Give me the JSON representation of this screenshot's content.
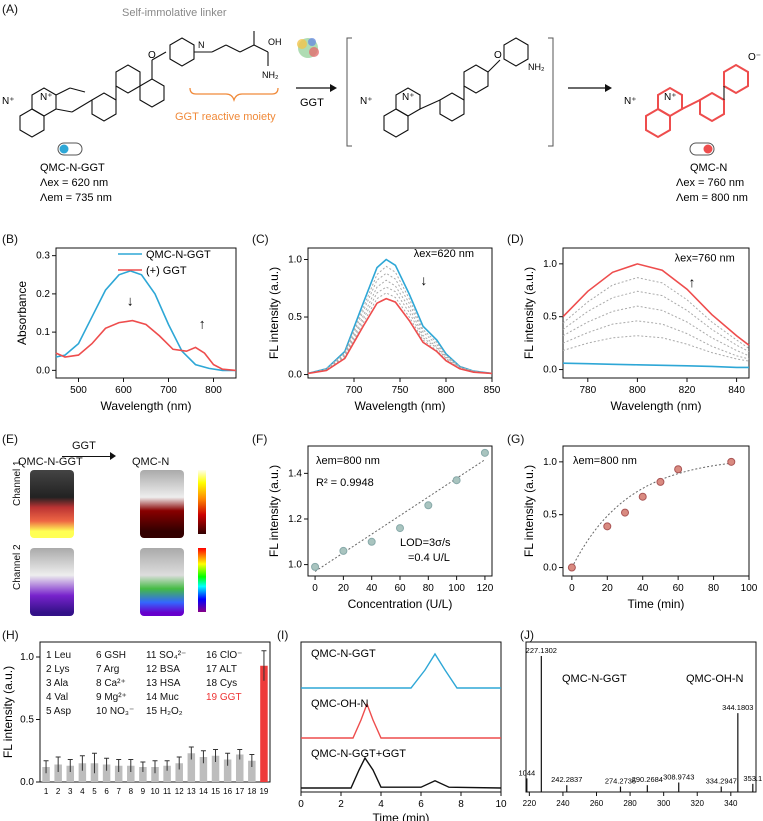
{
  "panels": {
    "A": "(A)",
    "B": "(B)",
    "C": "(C)",
    "D": "(D)",
    "E": "(E)",
    "F": "(F)",
    "G": "(G)",
    "H": "(H)",
    "I": "(I)",
    "J": "(J)"
  },
  "scheme": {
    "linker_label": "Self-immolative linker",
    "reactive_label": "GGT reactive moiety",
    "enzyme": "GGT",
    "probe": {
      "name": "QMC-N-GGT",
      "ex": "Λex = 620 nm",
      "em": "Λem = 735 nm"
    },
    "product": {
      "name": "QMC-N",
      "ex": "Λex = 760 nm",
      "em": "Λem = 800 nm"
    },
    "colors": {
      "probe": "#2ea7d6",
      "product": "#ee4d4d",
      "orange": "#f08a3a"
    }
  },
  "chart_data": [
    {
      "id": "B",
      "type": "line",
      "xlabel": "Wavelength (nm)",
      "ylabel": "Absorbance",
      "xlim": [
        450,
        850
      ],
      "ylim": [
        -0.02,
        0.32
      ],
      "xticks": [
        500,
        600,
        700,
        800
      ],
      "yticks": [
        0.0,
        0.1,
        0.2,
        0.3
      ],
      "legend": [
        "QMC-N-GGT",
        "(+) GGT"
      ],
      "series": [
        {
          "name": "QMC-N-GGT",
          "color": "#2ea7d6",
          "x": [
            450,
            470,
            500,
            530,
            560,
            590,
            615,
            640,
            670,
            700,
            730,
            760,
            790,
            820,
            850
          ],
          "y": [
            0.035,
            0.04,
            0.07,
            0.14,
            0.21,
            0.25,
            0.26,
            0.25,
            0.2,
            0.12,
            0.05,
            0.015,
            0.005,
            0.0,
            0.0
          ]
        },
        {
          "name": "(+) GGT",
          "color": "#ee4d4d",
          "x": [
            450,
            470,
            500,
            530,
            560,
            590,
            620,
            650,
            680,
            710,
            740,
            760,
            780,
            800,
            820,
            850
          ],
          "y": [
            0.045,
            0.035,
            0.04,
            0.07,
            0.11,
            0.125,
            0.13,
            0.12,
            0.09,
            0.055,
            0.05,
            0.06,
            0.045,
            0.015,
            0.003,
            0.0
          ]
        }
      ]
    },
    {
      "id": "C",
      "type": "line",
      "annotation": "λex=620 nm",
      "xlabel": "Wavelength (nm)",
      "ylabel": "FL intensity (a.u.)",
      "xlim": [
        650,
        850
      ],
      "ylim": [
        -0.03,
        1.1
      ],
      "xticks": [
        700,
        750,
        800,
        850
      ],
      "yticks": [
        0.0,
        0.5,
        1.0
      ],
      "x": [
        650,
        670,
        690,
        710,
        725,
        735,
        745,
        760,
        775,
        790,
        800,
        815,
        830,
        850
      ],
      "series": [
        {
          "name": "start",
          "color": "#2ea7d6",
          "y": [
            0.01,
            0.05,
            0.2,
            0.62,
            0.93,
            1.0,
            0.95,
            0.7,
            0.42,
            0.3,
            0.18,
            0.07,
            0.03,
            0.01
          ]
        },
        {
          "name": "t1",
          "color": "#aaaaaa",
          "y": [
            0.01,
            0.05,
            0.19,
            0.58,
            0.87,
            0.94,
            0.89,
            0.66,
            0.39,
            0.28,
            0.17,
            0.07,
            0.03,
            0.01
          ]
        },
        {
          "name": "t2",
          "color": "#aaaaaa",
          "y": [
            0.01,
            0.045,
            0.18,
            0.55,
            0.82,
            0.88,
            0.83,
            0.62,
            0.37,
            0.26,
            0.16,
            0.06,
            0.03,
            0.01
          ]
        },
        {
          "name": "t3",
          "color": "#aaaaaa",
          "y": [
            0.01,
            0.04,
            0.17,
            0.51,
            0.76,
            0.82,
            0.77,
            0.58,
            0.34,
            0.24,
            0.15,
            0.06,
            0.02,
            0.01
          ]
        },
        {
          "name": "t4",
          "color": "#aaaaaa",
          "y": [
            0.01,
            0.04,
            0.16,
            0.48,
            0.71,
            0.76,
            0.72,
            0.54,
            0.32,
            0.23,
            0.14,
            0.05,
            0.02,
            0.01
          ]
        },
        {
          "name": "t5",
          "color": "#aaaaaa",
          "y": [
            0.01,
            0.04,
            0.15,
            0.45,
            0.66,
            0.71,
            0.67,
            0.5,
            0.3,
            0.21,
            0.13,
            0.05,
            0.02,
            0.01
          ]
        },
        {
          "name": "end",
          "color": "#ee4d4d",
          "y": [
            0.01,
            0.035,
            0.14,
            0.42,
            0.62,
            0.66,
            0.63,
            0.47,
            0.28,
            0.2,
            0.12,
            0.05,
            0.02,
            0.01
          ]
        }
      ]
    },
    {
      "id": "D",
      "type": "line",
      "annotation": "λex=760 nm",
      "xlabel": "Wavelength (nm)",
      "ylabel": "FL intensity (a.u.)",
      "xlim": [
        770,
        845
      ],
      "ylim": [
        -0.08,
        1.15
      ],
      "xticks": [
        780,
        800,
        820,
        840
      ],
      "yticks": [
        0.0,
        0.5,
        1.0
      ],
      "x": [
        770,
        780,
        790,
        800,
        810,
        820,
        830,
        840,
        845
      ],
      "series": [
        {
          "name": "start",
          "color": "#2ea7d6",
          "y": [
            0.06,
            0.055,
            0.05,
            0.045,
            0.04,
            0.035,
            0.03,
            0.02,
            0.02
          ]
        },
        {
          "name": "t1",
          "color": "#aaaaaa",
          "y": [
            0.18,
            0.25,
            0.3,
            0.32,
            0.3,
            0.24,
            0.16,
            0.1,
            0.08
          ]
        },
        {
          "name": "t2",
          "color": "#aaaaaa",
          "y": [
            0.25,
            0.35,
            0.43,
            0.46,
            0.43,
            0.34,
            0.22,
            0.13,
            0.1
          ]
        },
        {
          "name": "t3",
          "color": "#aaaaaa",
          "y": [
            0.32,
            0.45,
            0.55,
            0.6,
            0.56,
            0.45,
            0.3,
            0.18,
            0.13
          ]
        },
        {
          "name": "t4",
          "color": "#aaaaaa",
          "y": [
            0.38,
            0.55,
            0.68,
            0.74,
            0.7,
            0.56,
            0.38,
            0.23,
            0.17
          ]
        },
        {
          "name": "t5",
          "color": "#aaaaaa",
          "y": [
            0.44,
            0.64,
            0.8,
            0.87,
            0.82,
            0.66,
            0.45,
            0.28,
            0.2
          ]
        },
        {
          "name": "end",
          "color": "#ee4d4d",
          "y": [
            0.5,
            0.74,
            0.92,
            1.0,
            0.94,
            0.76,
            0.52,
            0.32,
            0.23
          ]
        }
      ]
    },
    {
      "id": "F",
      "type": "scatter",
      "annotations": [
        "λem=800 nm",
        "R² = 0.9948",
        "LOD=3σ/s",
        "=0.4 U/L"
      ],
      "xlabel": "Concentration (U/L)",
      "ylabel": "FL intensity (a.u.)",
      "xlim": [
        -5,
        125
      ],
      "ylim": [
        0.95,
        1.52
      ],
      "xticks": [
        0,
        20,
        40,
        60,
        80,
        100,
        120
      ],
      "yticks": [
        1.0,
        1.2,
        1.4
      ],
      "x": [
        0,
        20,
        40,
        60,
        80,
        100,
        120
      ],
      "y": [
        0.99,
        1.06,
        1.1,
        1.16,
        1.26,
        1.37,
        1.49
      ],
      "fit": [
        [
          0,
          0.97
        ],
        [
          120,
          1.46
        ]
      ]
    },
    {
      "id": "G",
      "type": "scatter",
      "annotation": "λem=800 nm",
      "xlabel": "Time (min)",
      "ylabel": "FL intensity (a.u.)",
      "xlim": [
        -5,
        100
      ],
      "ylim": [
        -0.08,
        1.15
      ],
      "xticks": [
        0,
        20,
        40,
        60,
        80,
        100
      ],
      "yticks": [
        0.0,
        0.5,
        1.0
      ],
      "x": [
        0,
        20,
        30,
        40,
        50,
        60,
        90
      ],
      "y": [
        0.0,
        0.39,
        0.52,
        0.67,
        0.81,
        0.93,
        1.0
      ]
    },
    {
      "id": "H",
      "type": "bar",
      "ylabel": "FL intensity (a.u.)",
      "ylim": [
        0,
        1.12
      ],
      "yticks": [
        0.0,
        0.5,
        1.0
      ],
      "categories": [
        "1",
        "2",
        "3",
        "4",
        "5",
        "6",
        "7",
        "8",
        "9",
        "10",
        "11",
        "12",
        "13",
        "14",
        "15",
        "16",
        "17",
        "18",
        "19"
      ],
      "values": [
        0.12,
        0.14,
        0.13,
        0.15,
        0.15,
        0.14,
        0.13,
        0.13,
        0.12,
        0.12,
        0.13,
        0.15,
        0.23,
        0.2,
        0.21,
        0.18,
        0.22,
        0.17,
        0.93
      ],
      "errors": [
        0.05,
        0.06,
        0.05,
        0.06,
        0.08,
        0.05,
        0.05,
        0.05,
        0.04,
        0.05,
        0.04,
        0.05,
        0.05,
        0.05,
        0.05,
        0.05,
        0.04,
        0.05,
        0.12
      ],
      "colors": {
        "default": "#bdbdbd",
        "highlight": "#ee3b3b"
      },
      "legend_items": [
        [
          "1 Leu",
          "6 GSH",
          "11 SO₄²⁻",
          "16 ClO⁻"
        ],
        [
          "2 Lys",
          "7 Arg",
          "12 BSA",
          "17 ALT"
        ],
        [
          "3 Ala",
          "8 Ca²⁺",
          "13 HSA",
          "18 Cys"
        ],
        [
          "4 Val",
          "9 Mg²⁺",
          "14 Muc",
          "19 GGT"
        ],
        [
          "5 Asp",
          "10 NO₃⁻",
          "15 H₂O₂",
          ""
        ]
      ]
    },
    {
      "id": "I",
      "type": "line",
      "xlabel": "Time (min)",
      "xlim": [
        0,
        10
      ],
      "xticks": [
        0,
        2,
        4,
        6,
        8,
        10
      ],
      "series": [
        {
          "name": "QMC-N-GGT",
          "color": "#2ea7d6",
          "x": [
            0,
            5.5,
            6.2,
            6.7,
            7.2,
            7.8,
            10
          ],
          "y": [
            0,
            0,
            0.45,
            0.85,
            0.45,
            0,
            0
          ]
        },
        {
          "name": "QMC-OH-N",
          "color": "#ee4d4d",
          "x": [
            0,
            2.6,
            3.0,
            3.3,
            3.6,
            4.0,
            10
          ],
          "y": [
            0,
            0,
            0.45,
            0.85,
            0.45,
            0,
            0
          ]
        },
        {
          "name": "QMC-N-GGT+GGT",
          "color": "#111111",
          "x": [
            0,
            2.5,
            2.9,
            3.2,
            3.6,
            4.0,
            6.0,
            6.7,
            7.4,
            10
          ],
          "y": [
            0,
            0,
            0.45,
            0.75,
            0.45,
            0.02,
            0.02,
            0.18,
            0.02,
            0
          ]
        }
      ]
    },
    {
      "id": "J",
      "type": "bar",
      "labels": [
        "QMC-N-GGT",
        "QMC-OH-N"
      ],
      "xlim": [
        218,
        355
      ],
      "xticks": [
        220,
        240,
        260,
        280,
        300,
        320,
        340
      ],
      "peaks": [
        {
          "mz": 218.5,
          "label": "1044",
          "h": 0.1
        },
        {
          "mz": 227.1302,
          "label": "227.1302",
          "h": 1.0
        },
        {
          "mz": 242.2837,
          "label": "242.2837",
          "h": 0.05
        },
        {
          "mz": 274.2735,
          "label": "274.2735",
          "h": 0.04
        },
        {
          "mz": 290.2684,
          "label": "290.2684",
          "h": 0.05
        },
        {
          "mz": 308.9743,
          "label": "308.9743",
          "h": 0.07
        },
        {
          "mz": 334.2947,
          "label": "334.2947",
          "h": 0.04
        },
        {
          "mz": 344.1803,
          "label": "344.1803",
          "h": 0.58
        },
        {
          "mz": 353.1,
          "label": "353.1",
          "h": 0.06
        }
      ]
    }
  ]
}
